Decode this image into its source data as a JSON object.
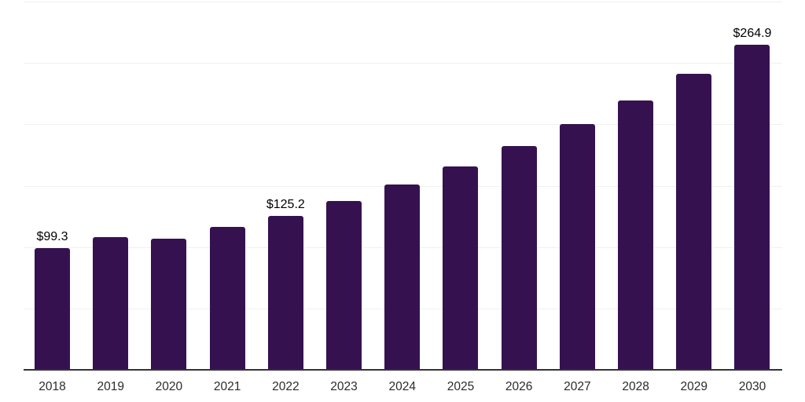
{
  "chart_data": {
    "type": "bar",
    "title": "",
    "xlabel": "",
    "ylabel": "",
    "categories": [
      "2018",
      "2019",
      "2020",
      "2021",
      "2022",
      "2023",
      "2024",
      "2025",
      "2026",
      "2027",
      "2028",
      "2029",
      "2030"
    ],
    "values": [
      99.3,
      107.8,
      107.0,
      116.3,
      125.2,
      137.4,
      151.0,
      165.6,
      182.3,
      199.9,
      219.3,
      241.1,
      264.9
    ],
    "data_labels": [
      {
        "index": 0,
        "text": "$99.3"
      },
      {
        "index": 4,
        "text": "$125.2"
      },
      {
        "index": 12,
        "text": "$264.9"
      }
    ],
    "ylim": [
      0,
      300
    ],
    "gridline_step": 50,
    "grid": true,
    "legend": false,
    "colors": {
      "bar": "#361150",
      "gridline": "#f0f0f0",
      "axis_line": "#333333",
      "data_label": "#000000",
      "tick_label": "#2b2b2b",
      "background": "#ffffff"
    }
  }
}
